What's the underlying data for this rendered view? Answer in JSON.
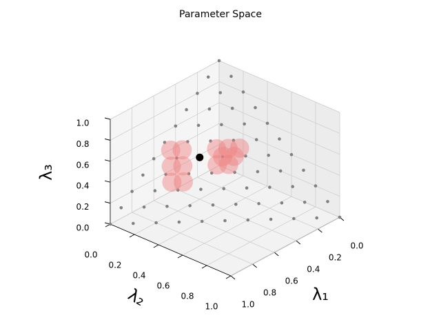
{
  "chart_data": {
    "type": "scatter3d",
    "title": "Parameter Space",
    "xlabel": "λ₁",
    "ylabel": "λ₂",
    "zlabel": "λ₃",
    "xlim": [
      0,
      1
    ],
    "ylim": [
      0,
      1
    ],
    "zlim": [
      0,
      1
    ],
    "xticks": [
      {
        "value": 0,
        "label": "0.0"
      },
      {
        "value": 0.2,
        "label": "0.2"
      },
      {
        "value": 0.4,
        "label": "0.4"
      },
      {
        "value": 0.6,
        "label": "0.6"
      },
      {
        "value": 0.8,
        "label": "0.8"
      },
      {
        "value": 1,
        "label": "1.0"
      }
    ],
    "yticks": [
      {
        "value": 0,
        "label": "0.0"
      },
      {
        "value": 0.2,
        "label": "0.2"
      },
      {
        "value": 0.4,
        "label": "0.4"
      },
      {
        "value": 0.6,
        "label": "0.6"
      },
      {
        "value": 0.8,
        "label": "0.8"
      },
      {
        "value": 1,
        "label": "1.0"
      }
    ],
    "zticks": [
      {
        "value": 0,
        "label": "0.0"
      },
      {
        "value": 0.2,
        "label": "0.2"
      },
      {
        "value": 0.4,
        "label": "0.4"
      },
      {
        "value": 0.6,
        "label": "0.6"
      },
      {
        "value": 0.8,
        "label": "0.8"
      },
      {
        "value": 1,
        "label": "1.0"
      }
    ],
    "grid": true,
    "series": [
      {
        "color": "#808080",
        "x": [
          0,
          0.1,
          0.2,
          0.3,
          0.4,
          0.5,
          0.6,
          0.7,
          0.8,
          0.9,
          1,
          0,
          0.1,
          0.2,
          0.3,
          0.4,
          0.5,
          0.6,
          0.7,
          0.8,
          0.9,
          0,
          0.1,
          0.2,
          0.3,
          0.4,
          0.5,
          0.6,
          0.7,
          0.8,
          0,
          0.1,
          0.2,
          0.3,
          0.4,
          0.5,
          0.6,
          0.7,
          0,
          0.1,
          0.2,
          0.3,
          0.4,
          0.5,
          0.6,
          0,
          0.1,
          0.2,
          0.3,
          0.4,
          0.5,
          0,
          0.1,
          0.2,
          0.3,
          0.4,
          0,
          0.1,
          0.2,
          0.3,
          0,
          0.1,
          0.2,
          0,
          0.1,
          0
        ],
        "y": [
          1,
          0.9,
          0.8,
          0.7,
          0.6,
          0.5,
          0.4,
          0.3,
          0.2,
          0.1,
          0,
          0.9,
          0.8,
          0.7,
          0.6,
          0.5,
          0.4,
          0.3,
          0.2,
          0.1,
          0,
          0.8,
          0.7,
          0.6,
          0.5,
          0.4,
          0.3,
          0.2,
          0.1,
          0,
          0.7,
          0.6,
          0.5,
          0.4,
          0.3,
          0.2,
          0.1,
          0,
          0.6,
          0.5,
          0.4,
          0.3,
          0.2,
          0.1,
          0,
          0.5,
          0.4,
          0.3,
          0.2,
          0.1,
          0,
          0.4,
          0.3,
          0.2,
          0.1,
          0,
          0.3,
          0.2,
          0.1,
          0,
          0.2,
          0.1,
          0,
          0.1,
          0,
          0
        ],
        "z": [
          0,
          0,
          0,
          0,
          0,
          0,
          0,
          0,
          0,
          0,
          0,
          0.1,
          0.1,
          0.1,
          0.1,
          0.1,
          0.1,
          0.1,
          0.1,
          0.1,
          0.1,
          0.2,
          0.2,
          0.2,
          0.2,
          0.2,
          0.2,
          0.2,
          0.2,
          0.2,
          0.3,
          0.3,
          0.3,
          0.3,
          0.3,
          0.3,
          0.3,
          0.3,
          0.4,
          0.4,
          0.4,
          0.4,
          0.4,
          0.4,
          0.4,
          0.5,
          0.5,
          0.5,
          0.5,
          0.5,
          0.5,
          0.6,
          0.6,
          0.6,
          0.6,
          0.6,
          0.7,
          0.7,
          0.7,
          0.7,
          0.8,
          0.8,
          0.8,
          0.9,
          0.9,
          1
        ]
      },
      {
        "color": "#f08080",
        "x": [
          0.5,
          0.55,
          0.45,
          0.5,
          0.55,
          0.6,
          0.3,
          0.25,
          0.3,
          0.25,
          0.3,
          0.35,
          0.2
        ],
        "y": [
          0.15,
          0.1,
          0.1,
          0.05,
          0.2,
          0.15,
          0.3,
          0.3,
          0.25,
          0.35,
          0.35,
          0.3,
          0.35
        ],
        "z": [
          0.35,
          0.35,
          0.45,
          0.45,
          0.25,
          0.25,
          0.4,
          0.45,
          0.45,
          0.4,
          0.35,
          0.35,
          0.45
        ]
      },
      {
        "color": "#000000",
        "x": [
          0.4
        ],
        "y": [
          0.2
        ],
        "z": [
          0.4
        ]
      }
    ]
  }
}
